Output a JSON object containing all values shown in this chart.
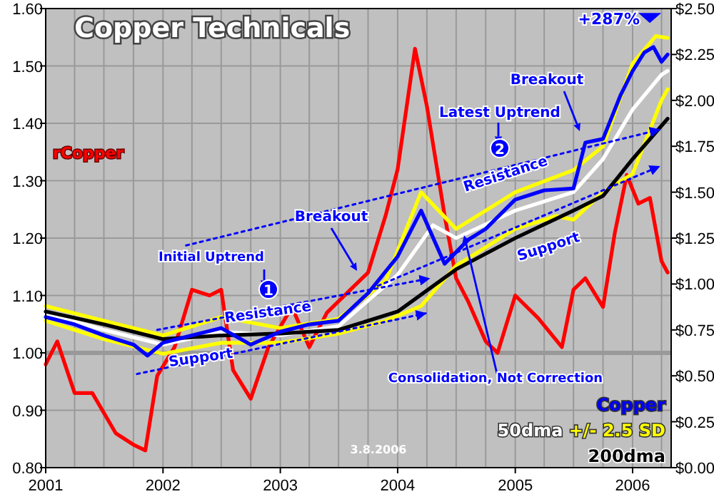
{
  "chart_data": {
    "type": "line",
    "title": "Copper Technicals",
    "xlim": [
      "2001-01-01",
      "2006-05-01"
    ],
    "xticks": [
      {
        "value": "2001-01-01",
        "label": "2001"
      },
      {
        "value": "2001-04-01",
        "label": null
      },
      {
        "value": "2001-07-01",
        "label": null
      },
      {
        "value": "2001-10-01",
        "label": null
      },
      {
        "value": "2002-01-01",
        "label": "2002"
      },
      {
        "value": "2002-04-01",
        "label": null
      },
      {
        "value": "2002-07-01",
        "label": null
      },
      {
        "value": "2002-10-01",
        "label": null
      },
      {
        "value": "2003-01-01",
        "label": "2003"
      },
      {
        "value": "2003-04-01",
        "label": null
      },
      {
        "value": "2003-07-01",
        "label": null
      },
      {
        "value": "2003-10-01",
        "label": null
      },
      {
        "value": "2004-01-01",
        "label": "2004"
      },
      {
        "value": "2004-04-01",
        "label": null
      },
      {
        "value": "2004-07-01",
        "label": null
      },
      {
        "value": "2004-10-01",
        "label": null
      },
      {
        "value": "2005-01-01",
        "label": "2005"
      },
      {
        "value": "2005-04-01",
        "label": null
      },
      {
        "value": "2005-07-01",
        "label": null
      },
      {
        "value": "2005-10-01",
        "label": null
      },
      {
        "value": "2006-01-01",
        "label": "2006"
      },
      {
        "value": "2006-04-01",
        "label": null
      }
    ],
    "ylim": [
      0.8,
      1.6
    ],
    "yticks": [
      {
        "value": 0.8,
        "label": "0.80"
      },
      {
        "value": 0.9,
        "label": "0.90"
      },
      {
        "value": 1.0,
        "label": "1.00"
      },
      {
        "value": 1.1,
        "label": "1.10"
      },
      {
        "value": 1.2,
        "label": "1.20"
      },
      {
        "value": 1.3,
        "label": "1.30"
      },
      {
        "value": 1.4,
        "label": "1.40"
      },
      {
        "value": 1.5,
        "label": "1.50"
      },
      {
        "value": 1.6,
        "label": "1.60"
      }
    ],
    "y2lim": [
      0,
      2.5
    ],
    "y2ticks": [
      {
        "value": 0,
        "label": "$0.00"
      },
      {
        "value": 0.25,
        "label": "$0.25"
      },
      {
        "value": 0.5,
        "label": "$0.50"
      },
      {
        "value": 0.75,
        "label": "$0.75"
      },
      {
        "value": 1.0,
        "label": "$1.00"
      },
      {
        "value": 1.25,
        "label": "$1.25"
      },
      {
        "value": 1.5,
        "label": "$1.50"
      },
      {
        "value": 1.75,
        "label": "$1.75"
      },
      {
        "value": 2.0,
        "label": "$2.00"
      },
      {
        "value": 2.25,
        "label": "$2.25"
      },
      {
        "value": 2.5,
        "label": "$2.50"
      }
    ],
    "grid": true,
    "legend": "bottom right",
    "line_style": "solid",
    "ref_lines": [
      {
        "axis": "y",
        "value": 1.0,
        "label": null,
        "color": "#999999"
      }
    ],
    "series": [
      {
        "name": "rCopper",
        "color": "#ff0000",
        "axis": "y",
        "x": [
          "2001-01-01",
          "2001-02-06",
          "2001-04-01",
          "2001-05-26",
          "2001-08-07",
          "2001-10-01",
          "2001-11-07",
          "2001-12-14",
          "2002-02-06",
          "2002-04-01",
          "2002-05-26",
          "2002-07-01",
          "2002-08-07",
          "2002-10-01",
          "2002-11-25",
          "2003-02-06",
          "2003-04-01",
          "2003-05-26",
          "2003-08-07",
          "2003-10-01",
          "2003-11-25",
          "2004-01-01",
          "2004-02-24",
          "2004-04-01",
          "2004-05-26",
          "2004-07-01",
          "2004-08-07",
          "2004-10-01",
          "2004-11-07",
          "2005-01-01",
          "2005-03-14",
          "2005-05-26",
          "2005-07-01",
          "2005-08-07",
          "2005-10-01",
          "2005-11-07",
          "2005-12-14",
          "2006-01-19",
          "2006-02-24",
          "2006-04-01",
          "2006-04-20"
        ],
        "values": [
          0.98,
          1.02,
          0.93,
          0.93,
          0.86,
          0.84,
          0.83,
          0.96,
          1.01,
          1.11,
          1.1,
          1.11,
          0.97,
          0.92,
          1.01,
          1.08,
          1.01,
          1.07,
          1.11,
          1.14,
          1.24,
          1.32,
          1.53,
          1.43,
          1.24,
          1.13,
          1.09,
          1.02,
          1.0,
          1.1,
          1.06,
          1.01,
          1.11,
          1.13,
          1.08,
          1.21,
          1.31,
          1.26,
          1.27,
          1.16,
          1.14
        ]
      },
      {
        "name": "Copper",
        "color": "#0000ff",
        "axis": "y2",
        "x": [
          "2001-01-01",
          "2001-04-01",
          "2001-07-01",
          "2001-10-01",
          "2001-11-14",
          "2002-01-01",
          "2002-04-01",
          "2002-07-01",
          "2002-10-01",
          "2003-01-01",
          "2003-04-01",
          "2003-07-01",
          "2003-10-01",
          "2004-01-01",
          "2004-03-14",
          "2004-05-26",
          "2004-08-07",
          "2004-10-01",
          "2005-01-01",
          "2005-04-01",
          "2005-07-01",
          "2005-08-07",
          "2005-10-01",
          "2005-11-25",
          "2006-01-01",
          "2006-02-06",
          "2006-03-07",
          "2006-04-01",
          "2006-04-20"
        ],
        "values": [
          0.82,
          0.78,
          0.72,
          0.67,
          0.61,
          0.68,
          0.72,
          0.76,
          0.67,
          0.74,
          0.78,
          0.8,
          0.95,
          1.15,
          1.4,
          1.11,
          1.24,
          1.3,
          1.46,
          1.51,
          1.52,
          1.77,
          1.79,
          2.03,
          2.16,
          2.26,
          2.29,
          2.21,
          2.25
        ]
      },
      {
        "name": "50dma",
        "color": "#ffffff",
        "axis": "y2",
        "x": [
          "2001-01-01",
          "2001-07-01",
          "2002-01-01",
          "2002-07-01",
          "2003-01-01",
          "2003-07-01",
          "2004-01-01",
          "2004-04-20",
          "2004-07-01",
          "2005-01-01",
          "2005-07-01",
          "2005-10-01",
          "2006-01-01",
          "2006-04-01",
          "2006-04-20"
        ],
        "values": [
          0.84,
          0.75,
          0.67,
          0.74,
          0.72,
          0.77,
          1.05,
          1.32,
          1.25,
          1.4,
          1.5,
          1.68,
          1.95,
          2.14,
          2.16
        ]
      },
      {
        "name": "+/- 2.5 SD",
        "color": "#ffff00",
        "axis": "y2",
        "x": [
          "2001-01-01",
          "2001-07-01",
          "2002-01-01",
          "2002-07-01",
          "2003-01-01",
          "2003-07-01",
          "2003-11-25",
          "2004-03-14",
          "2004-07-01",
          "2004-10-01",
          "2005-01-01",
          "2005-07-01",
          "2005-10-01",
          "2006-01-01",
          "2006-03-14",
          "2006-04-20"
        ],
        "values": [
          0.88,
          0.8,
          0.72,
          0.82,
          0.76,
          0.81,
          1.02,
          1.5,
          1.3,
          1.4,
          1.5,
          1.62,
          1.75,
          2.2,
          2.35,
          2.34
        ]
      },
      {
        "color": "#ffff00",
        "axis": "y2",
        "x": [
          "2001-01-01",
          "2001-07-01",
          "2002-01-01",
          "2002-07-01",
          "2003-01-01",
          "2003-07-01",
          "2003-11-25",
          "2004-03-14",
          "2004-07-01",
          "2005-01-01",
          "2005-05-08",
          "2005-07-01",
          "2005-10-01",
          "2006-01-01",
          "2006-04-01",
          "2006-04-20"
        ],
        "values": [
          0.8,
          0.7,
          0.62,
          0.68,
          0.68,
          0.73,
          0.8,
          0.88,
          1.1,
          1.3,
          1.37,
          1.35,
          1.5,
          1.6,
          2.0,
          2.06
        ]
      },
      {
        "type": "line",
        "color": "#0000ff",
        "axis": "y2",
        "line_style": "dotted",
        "x": [
          "2001-10-12",
          "2004-03-28"
        ],
        "values": [
          0.51,
          0.84
        ]
      },
      {
        "type": "line",
        "color": "#0000ff",
        "axis": "y2",
        "line_style": "dotted",
        "x": [
          "2001-12-14",
          "2004-04-08"
        ],
        "values": [
          0.75,
          1.03
        ]
      },
      {
        "type": "line",
        "color": "#0000ff",
        "axis": "y2",
        "line_style": "dotted",
        "x": [
          "2002-03-14",
          "2006-03-25"
        ],
        "values": [
          1.21,
          1.84
        ]
      },
      {
        "type": "line",
        "color": "#0000ff",
        "axis": "y2",
        "line_style": "dotted",
        "x": [
          "2003-11-01",
          "2006-03-25"
        ],
        "values": [
          0.99,
          1.64
        ]
      },
      {
        "name": "200dma",
        "color": "#000000",
        "axis": "y2",
        "x": [
          "2001-01-01",
          "2001-07-01",
          "2002-01-01",
          "2002-07-01",
          "2003-01-01",
          "2003-07-01",
          "2004-01-01",
          "2004-07-01",
          "2005-01-01",
          "2005-07-01",
          "2005-10-01",
          "2006-01-01",
          "2006-04-20"
        ],
        "values": [
          0.85,
          0.78,
          0.7,
          0.72,
          0.73,
          0.75,
          0.85,
          1.08,
          1.25,
          1.4,
          1.48,
          1.68,
          1.9
        ]
      }
    ],
    "annotations": [
      "+287%",
      "Initial Uptrend",
      "1",
      "Breakout",
      "Resistance",
      "Support",
      "Latest Uptrend",
      "2",
      "Breakout",
      "Resistance",
      "Support",
      "Consolidation, Not Correction",
      "3.8.2006"
    ]
  }
}
